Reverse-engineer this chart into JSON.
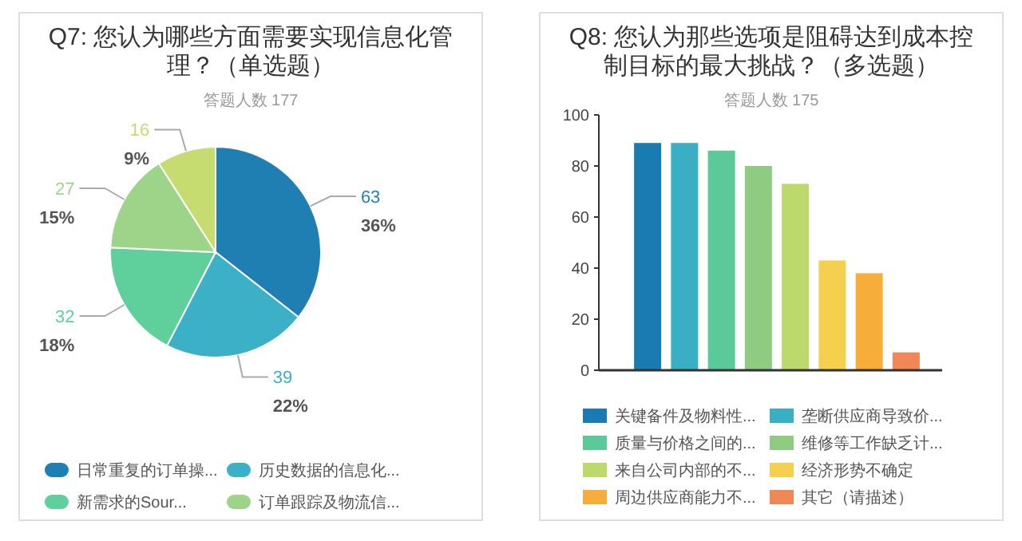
{
  "chart_data": [
    {
      "type": "pie",
      "title": "Q7: 您认为哪些方面需要实现信息化管理？（单选题）",
      "subtitle": "答题人数 177",
      "categories": [
        "日常重复的订单操...",
        "历史数据的信息化...",
        "新需求的Sour...",
        "订单跟踪及物流信...",
        null
      ],
      "values": [
        63,
        39,
        32,
        27,
        16
      ],
      "data_labels": true,
      "annotations": [
        "36%",
        "22%",
        "18%",
        "15%",
        "9%"
      ],
      "colors": [
        "#1f7fb2",
        "#3bb0c6",
        "#5fcf9c",
        "#9dd489",
        "#c6dc70"
      ],
      "legend": "bottom"
    },
    {
      "type": "bar",
      "title": "Q8: 您认为那些选项是阻碍达到成本控制目标的最大挑战？（多选题）",
      "subtitle": "答题人数 175",
      "categories": [
        null
      ],
      "series": [
        {
          "name": "关键备件及物料性...",
          "color": "#1a7bb0",
          "values": [
            89
          ]
        },
        {
          "name": "垄断供应商导致价...",
          "color": "#3aafc4",
          "values": [
            89
          ]
        },
        {
          "name": "质量与价格之间的...",
          "color": "#5cc99a",
          "values": [
            86
          ]
        },
        {
          "name": "维修等工作缺乏计...",
          "color": "#8fcc82",
          "values": [
            80
          ]
        },
        {
          "name": "来自公司内部的不...",
          "color": "#bcd96b",
          "values": [
            73
          ]
        },
        {
          "name": "经济形势不确定",
          "color": "#f5d04f",
          "values": [
            43
          ]
        },
        {
          "name": "周边供应商能力不...",
          "color": "#f6ad3a",
          "values": [
            38
          ]
        },
        {
          "name": "其它（请描述）",
          "color": "#ef8856",
          "values": [
            7
          ]
        }
      ],
      "ylim": [
        0,
        100
      ],
      "yticks": [
        0,
        20,
        40,
        60,
        80,
        100
      ],
      "tick_labels": "y",
      "legend": "bottom"
    }
  ]
}
